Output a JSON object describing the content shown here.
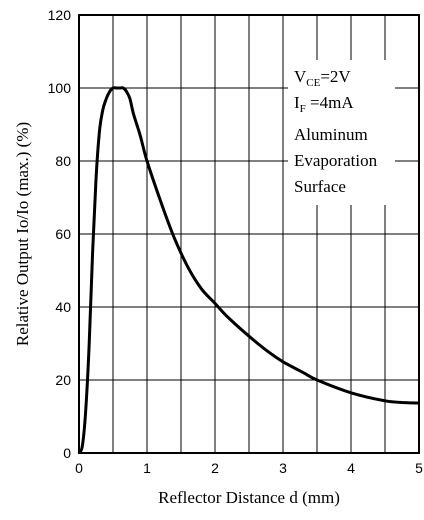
{
  "chart_data": {
    "type": "line",
    "title": "",
    "xlabel": "Reflector Distance d (mm)",
    "ylabel": "Relative Output Io/Io (max.) (%)",
    "xlim": [
      0,
      5
    ],
    "ylim": [
      0,
      120
    ],
    "x_ticks": [
      "0",
      "1",
      "2",
      "3",
      "4",
      "5"
    ],
    "y_ticks": [
      "0",
      "20",
      "40",
      "60",
      "80",
      "100",
      "120"
    ],
    "grid": true,
    "legend": "none",
    "annotation": {
      "line1": {
        "main": "V",
        "sub": "CE",
        "rest": "=2V"
      },
      "line2": {
        "main": "I",
        "sub": "F",
        "rest": " =4mA"
      },
      "line3": "Aluminum",
      "line4": "Evaporation",
      "line5": "Surface"
    },
    "series": [
      {
        "color": "#000000",
        "x": [
          0,
          0.05,
          0.1,
          0.15,
          0.2,
          0.25,
          0.3,
          0.35,
          0.4,
          0.45,
          0.5,
          0.55,
          0.6,
          0.65,
          0.7,
          0.75,
          0.8,
          0.9,
          1.0,
          1.2,
          1.4,
          1.6,
          1.8,
          2.0,
          2.2,
          2.5,
          2.8,
          3.0,
          3.3,
          3.5,
          4.0,
          4.5,
          4.8,
          5.0
        ],
        "y": [
          0,
          2,
          12,
          30,
          55,
          75,
          88,
          94,
          97,
          99,
          100,
          100,
          100,
          100,
          99,
          97,
          93,
          87,
          80,
          69,
          59,
          51,
          45,
          41,
          37,
          32,
          27.5,
          25,
          22,
          20,
          16.5,
          14.3,
          13.8,
          13.7
        ]
      }
    ]
  }
}
